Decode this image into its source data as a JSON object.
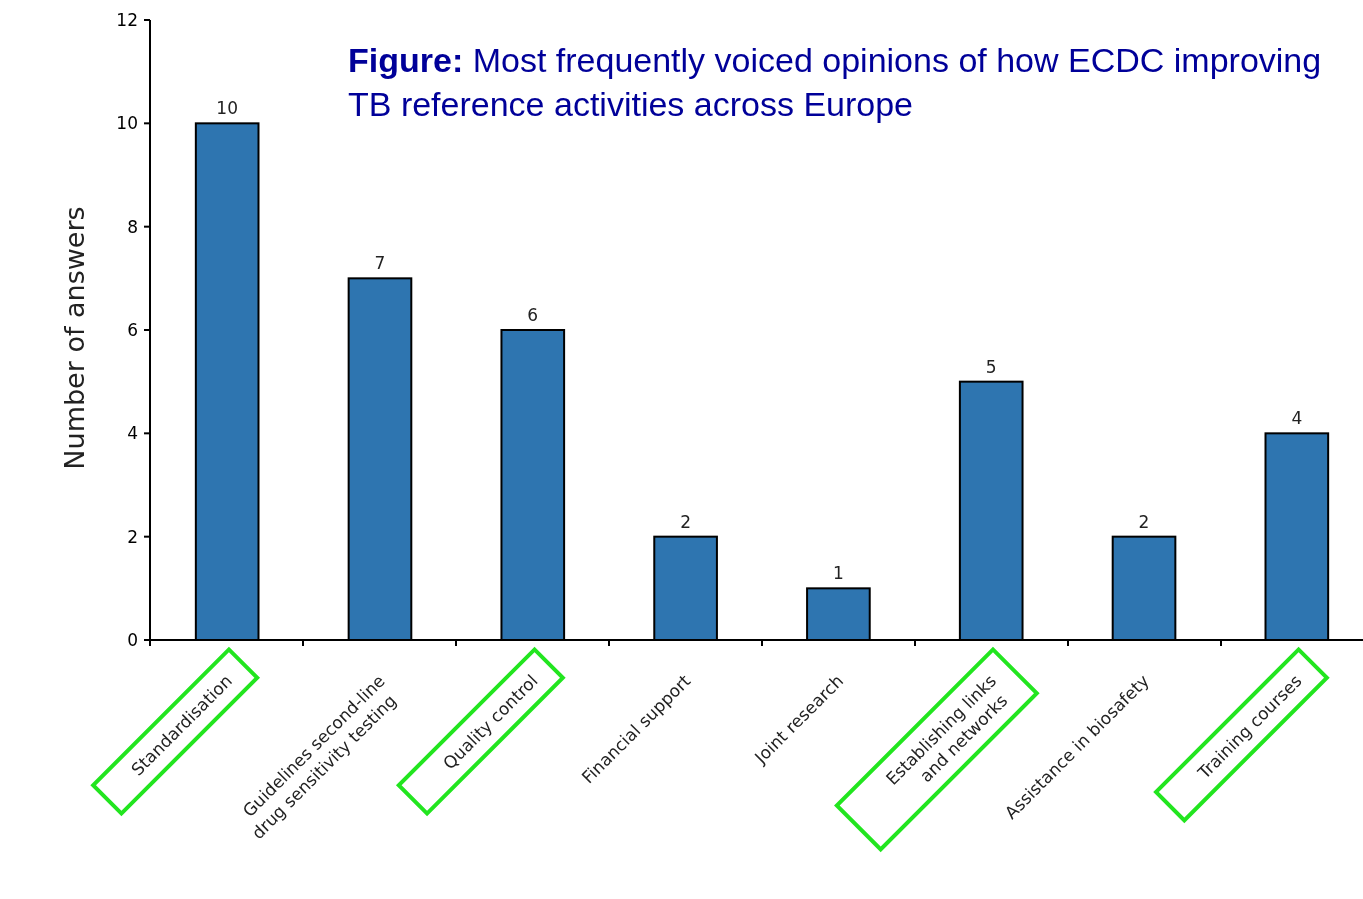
{
  "chart_data": {
    "type": "bar",
    "title": "Figure: Most frequently voiced opinions of how ECDC improving TB reference activities across Europe",
    "ylabel": "Number of answers",
    "categories": [
      "Standardisation",
      "Guidelines second-line\ndrug sensitivity testing",
      "Quality control",
      "Financial support",
      "Joint research",
      "Establishing links\nand networks",
      "Assistance in biosafety",
      "Training courses"
    ],
    "values": [
      10,
      7,
      6,
      2,
      1,
      5,
      2,
      4
    ],
    "color": "#2e75b0",
    "ylim": [
      0,
      12
    ],
    "yticks": [
      0,
      2,
      4,
      6,
      8,
      10,
      12
    ],
    "data_labels": true
  }
}
